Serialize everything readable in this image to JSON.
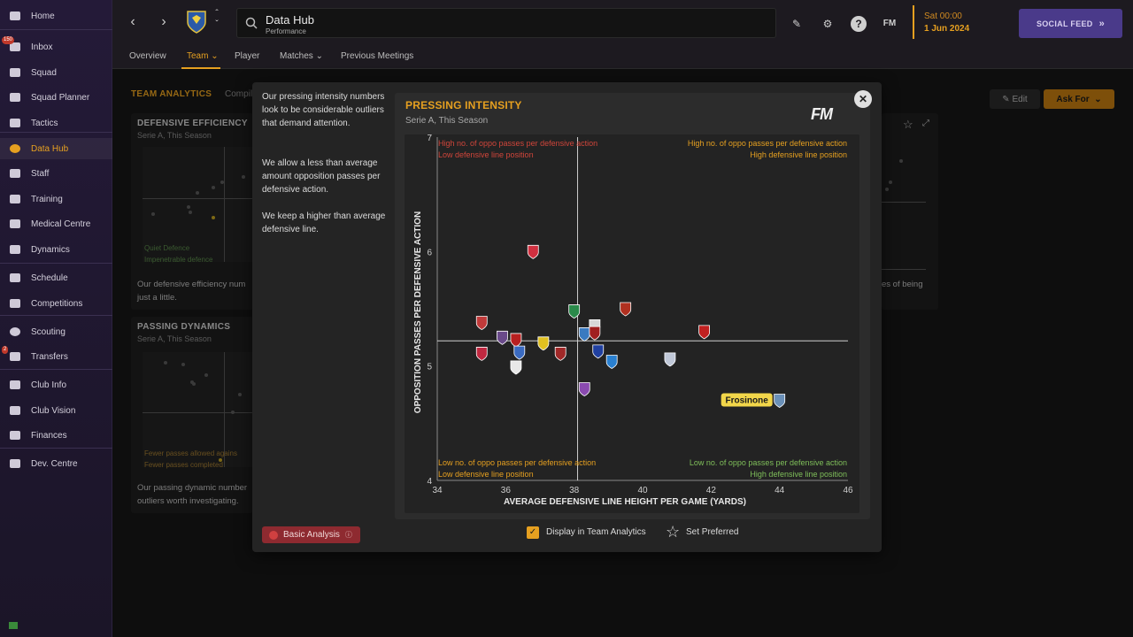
{
  "sidebar": {
    "items": [
      {
        "label": "Home",
        "icon": "home-icon"
      },
      {
        "label": "Inbox",
        "icon": "inbox-icon",
        "badge": "150"
      },
      {
        "label": "Squad",
        "icon": "shirt-icon"
      },
      {
        "label": "Squad Planner",
        "icon": "clipboard-icon"
      },
      {
        "label": "Tactics",
        "icon": "tactics-board-icon"
      },
      {
        "label": "Data Hub",
        "icon": "data-hub-icon"
      },
      {
        "label": "Staff",
        "icon": "staff-icon"
      },
      {
        "label": "Training",
        "icon": "training-cone-icon"
      },
      {
        "label": "Medical Centre",
        "icon": "medical-icon"
      },
      {
        "label": "Dynamics",
        "icon": "dynamics-icon"
      },
      {
        "label": "Schedule",
        "icon": "calendar-icon"
      },
      {
        "label": "Competitions",
        "icon": "trophy-icon"
      },
      {
        "label": "Scouting",
        "icon": "magnifier-icon"
      },
      {
        "label": "Transfers",
        "icon": "transfers-icon",
        "badge": "2"
      },
      {
        "label": "Club Info",
        "icon": "shield-icon"
      },
      {
        "label": "Club Vision",
        "icon": "briefcase-icon"
      },
      {
        "label": "Finances",
        "icon": "finances-icon"
      },
      {
        "label": "Dev. Centre",
        "icon": "dev-centre-icon"
      }
    ]
  },
  "header": {
    "title": "Data Hub",
    "subtitle": "Performance",
    "date_day": "Sat 00:00",
    "date": "1 Jun 2024",
    "social_feed": "SOCIAL FEED",
    "fm_label": "FM"
  },
  "subnav": {
    "tabs": [
      "Overview",
      "Team",
      "Player",
      "Matches",
      "Previous Meetings"
    ]
  },
  "analytics": {
    "title": "TEAM ANALYTICS",
    "subtitle": "Compil",
    "edit": "Edit",
    "ask_for": "Ask For",
    "cards": [
      {
        "title": "DEFENSIVE EFFICIENCY",
        "subtitle": "Serie A, This Season",
        "desc": "Our defensive efficiency num just a little.",
        "q1": "Quiet Defence",
        "q2": "Impenetrable defence"
      },
      {
        "title": "PASSING DYNAMICS",
        "subtitle": "Serie A, This Season",
        "desc": "Our passing dynamic number outliers worth investigating.",
        "q1": "Fewer passes allowed agains",
        "q2": "Fewer passes completed"
      }
    ],
    "right_card_desc": "es of being"
  },
  "modal": {
    "insights": [
      "Our pressing intensity numbers look to be considerable outliers that demand attention.",
      "We allow a less than average amount opposition passes per defensive action.",
      "We keep a higher than average defensive line."
    ],
    "basic_analysis": "Basic Analysis",
    "display_label": "Display in Team Analytics",
    "set_preferred": "Set Preferred",
    "fm_logo": "FM"
  },
  "chart_data": {
    "type": "scatter",
    "title": "PRESSING INTENSITY",
    "subtitle": "Serie A, This Season",
    "xlabel": "AVERAGE DEFENSIVE LINE HEIGHT PER GAME (YARDS)",
    "ylabel": "OPPOSITION PASSES PER DEFENSIVE ACTION",
    "xlim": [
      34,
      46
    ],
    "ylim": [
      4,
      7
    ],
    "xticks": [
      "34",
      "36",
      "38",
      "40",
      "42",
      "44",
      "46"
    ],
    "yticks": [
      "4",
      "5",
      "6",
      "7"
    ],
    "x_mean": 38.1,
    "y_mean": 5.22,
    "quadrants": {
      "top_left": [
        "High no. of oppo passes per defensive action",
        "Low defensive line position"
      ],
      "top_right": [
        "High no. of oppo passes per defensive action",
        "High defensive line position"
      ],
      "bottom_left": [
        "Low no. of oppo passes per defensive action",
        "Low defensive line position"
      ],
      "bottom_right": [
        "Low no. of oppo passes per defensive action",
        "High defensive line position"
      ]
    },
    "colors": {
      "top_left": "#d0453a",
      "top_right": "#e6a020",
      "bottom_left": "#e6a020",
      "bottom_right": "#7fbf5a",
      "highlight": "#f2d64a"
    },
    "highlight_label": "Frosinone",
    "points": [
      {
        "x": 36.8,
        "y": 6.0,
        "color": "#d03040"
      },
      {
        "x": 35.3,
        "y": 5.38,
        "color": "#c03a3a"
      },
      {
        "x": 35.9,
        "y": 5.25,
        "color": "#6a4a8a"
      },
      {
        "x": 36.3,
        "y": 5.23,
        "color": "#b82020"
      },
      {
        "x": 37.1,
        "y": 5.2,
        "color": "#e0c020"
      },
      {
        "x": 35.3,
        "y": 5.11,
        "color": "#c02840"
      },
      {
        "x": 36.4,
        "y": 5.12,
        "color": "#3a6ac0"
      },
      {
        "x": 37.6,
        "y": 5.11,
        "color": "#a02828"
      },
      {
        "x": 36.3,
        "y": 4.99,
        "color": "#e8e8e8"
      },
      {
        "x": 38.0,
        "y": 5.48,
        "color": "#2a8a4a"
      },
      {
        "x": 38.3,
        "y": 5.28,
        "color": "#3a7ac0"
      },
      {
        "x": 38.6,
        "y": 5.35,
        "color": "#d8d8d8"
      },
      {
        "x": 38.6,
        "y": 5.29,
        "color": "#a02020"
      },
      {
        "x": 38.7,
        "y": 5.13,
        "color": "#2040a0"
      },
      {
        "x": 39.1,
        "y": 5.04,
        "color": "#2a80d0"
      },
      {
        "x": 39.5,
        "y": 5.5,
        "color": "#b03020"
      },
      {
        "x": 38.3,
        "y": 4.8,
        "color": "#8a4ab0"
      },
      {
        "x": 40.8,
        "y": 5.06,
        "color": "#c0c8d8"
      },
      {
        "x": 41.8,
        "y": 5.3,
        "color": "#c02020"
      },
      {
        "x": 44.0,
        "y": 4.7,
        "color": "#6a90b8",
        "highlight": true
      }
    ]
  }
}
